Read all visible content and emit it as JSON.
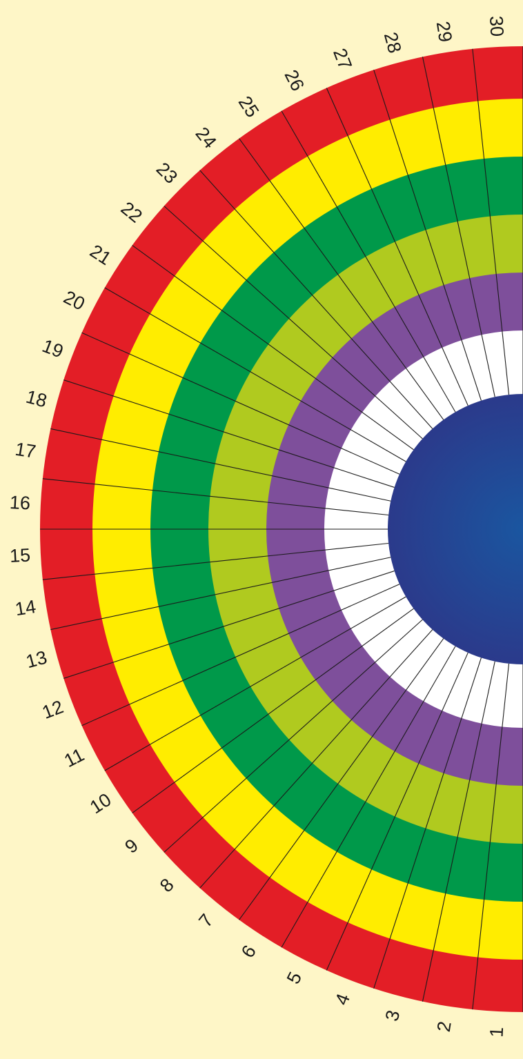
{
  "colors": {
    "background": "#FEF6C7",
    "rings": [
      "#FFFFFF",
      "#7E4F9B",
      "#B0CA1F",
      "#00994A",
      "#FFED00",
      "#E31E26"
    ],
    "center_light": "#1A56A0",
    "center_dark": "#2B3A8B",
    "divider": "#1a1a1a"
  },
  "wheel": {
    "segment_count": 30,
    "labels": [
      "1",
      "2",
      "3",
      "4",
      "5",
      "6",
      "7",
      "8",
      "9",
      "10",
      "11",
      "12",
      "13",
      "14",
      "15",
      "16",
      "17",
      "18",
      "19",
      "20",
      "21",
      "22",
      "23",
      "24",
      "25",
      "26",
      "27",
      "28",
      "29",
      "30"
    ]
  }
}
